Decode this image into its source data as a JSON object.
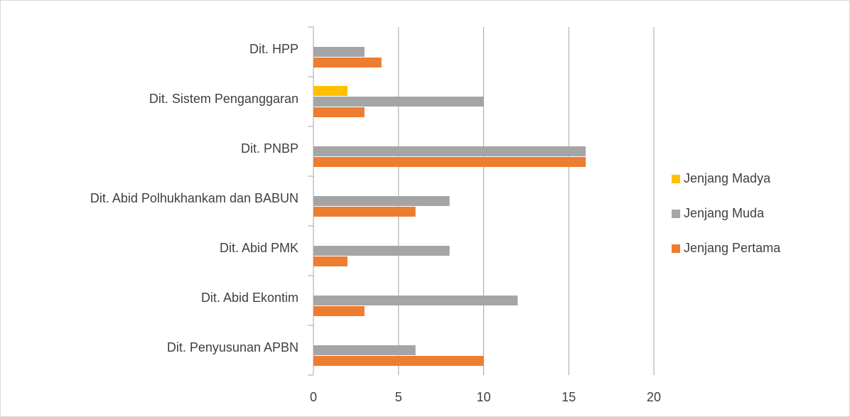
{
  "chart_data": {
    "type": "bar",
    "orientation": "horizontal",
    "categories": [
      "Dit. HPP",
      "Dit. Sistem Penganggaran",
      "Dit. PNBP",
      "Dit. Abid Polhukhankam dan BABUN",
      "Dit. Abid PMK",
      "Dit. Abid Ekontim",
      "Dit. Penyusunan APBN"
    ],
    "series": [
      {
        "name": "Jenjang Madya",
        "color": "#ffc000",
        "values": [
          0,
          2,
          0,
          0,
          0,
          0,
          0
        ]
      },
      {
        "name": "Jenjang Muda",
        "color": "#a5a5a5",
        "values": [
          3,
          10,
          16,
          8,
          8,
          12,
          6
        ]
      },
      {
        "name": "Jenjang Pertama",
        "color": "#ed7d31",
        "values": [
          4,
          3,
          16,
          6,
          2,
          3,
          10
        ]
      }
    ],
    "xlim": [
      0,
      20
    ],
    "xticks": [
      0,
      5,
      10,
      15,
      20
    ],
    "grid": true,
    "legend": "right"
  }
}
